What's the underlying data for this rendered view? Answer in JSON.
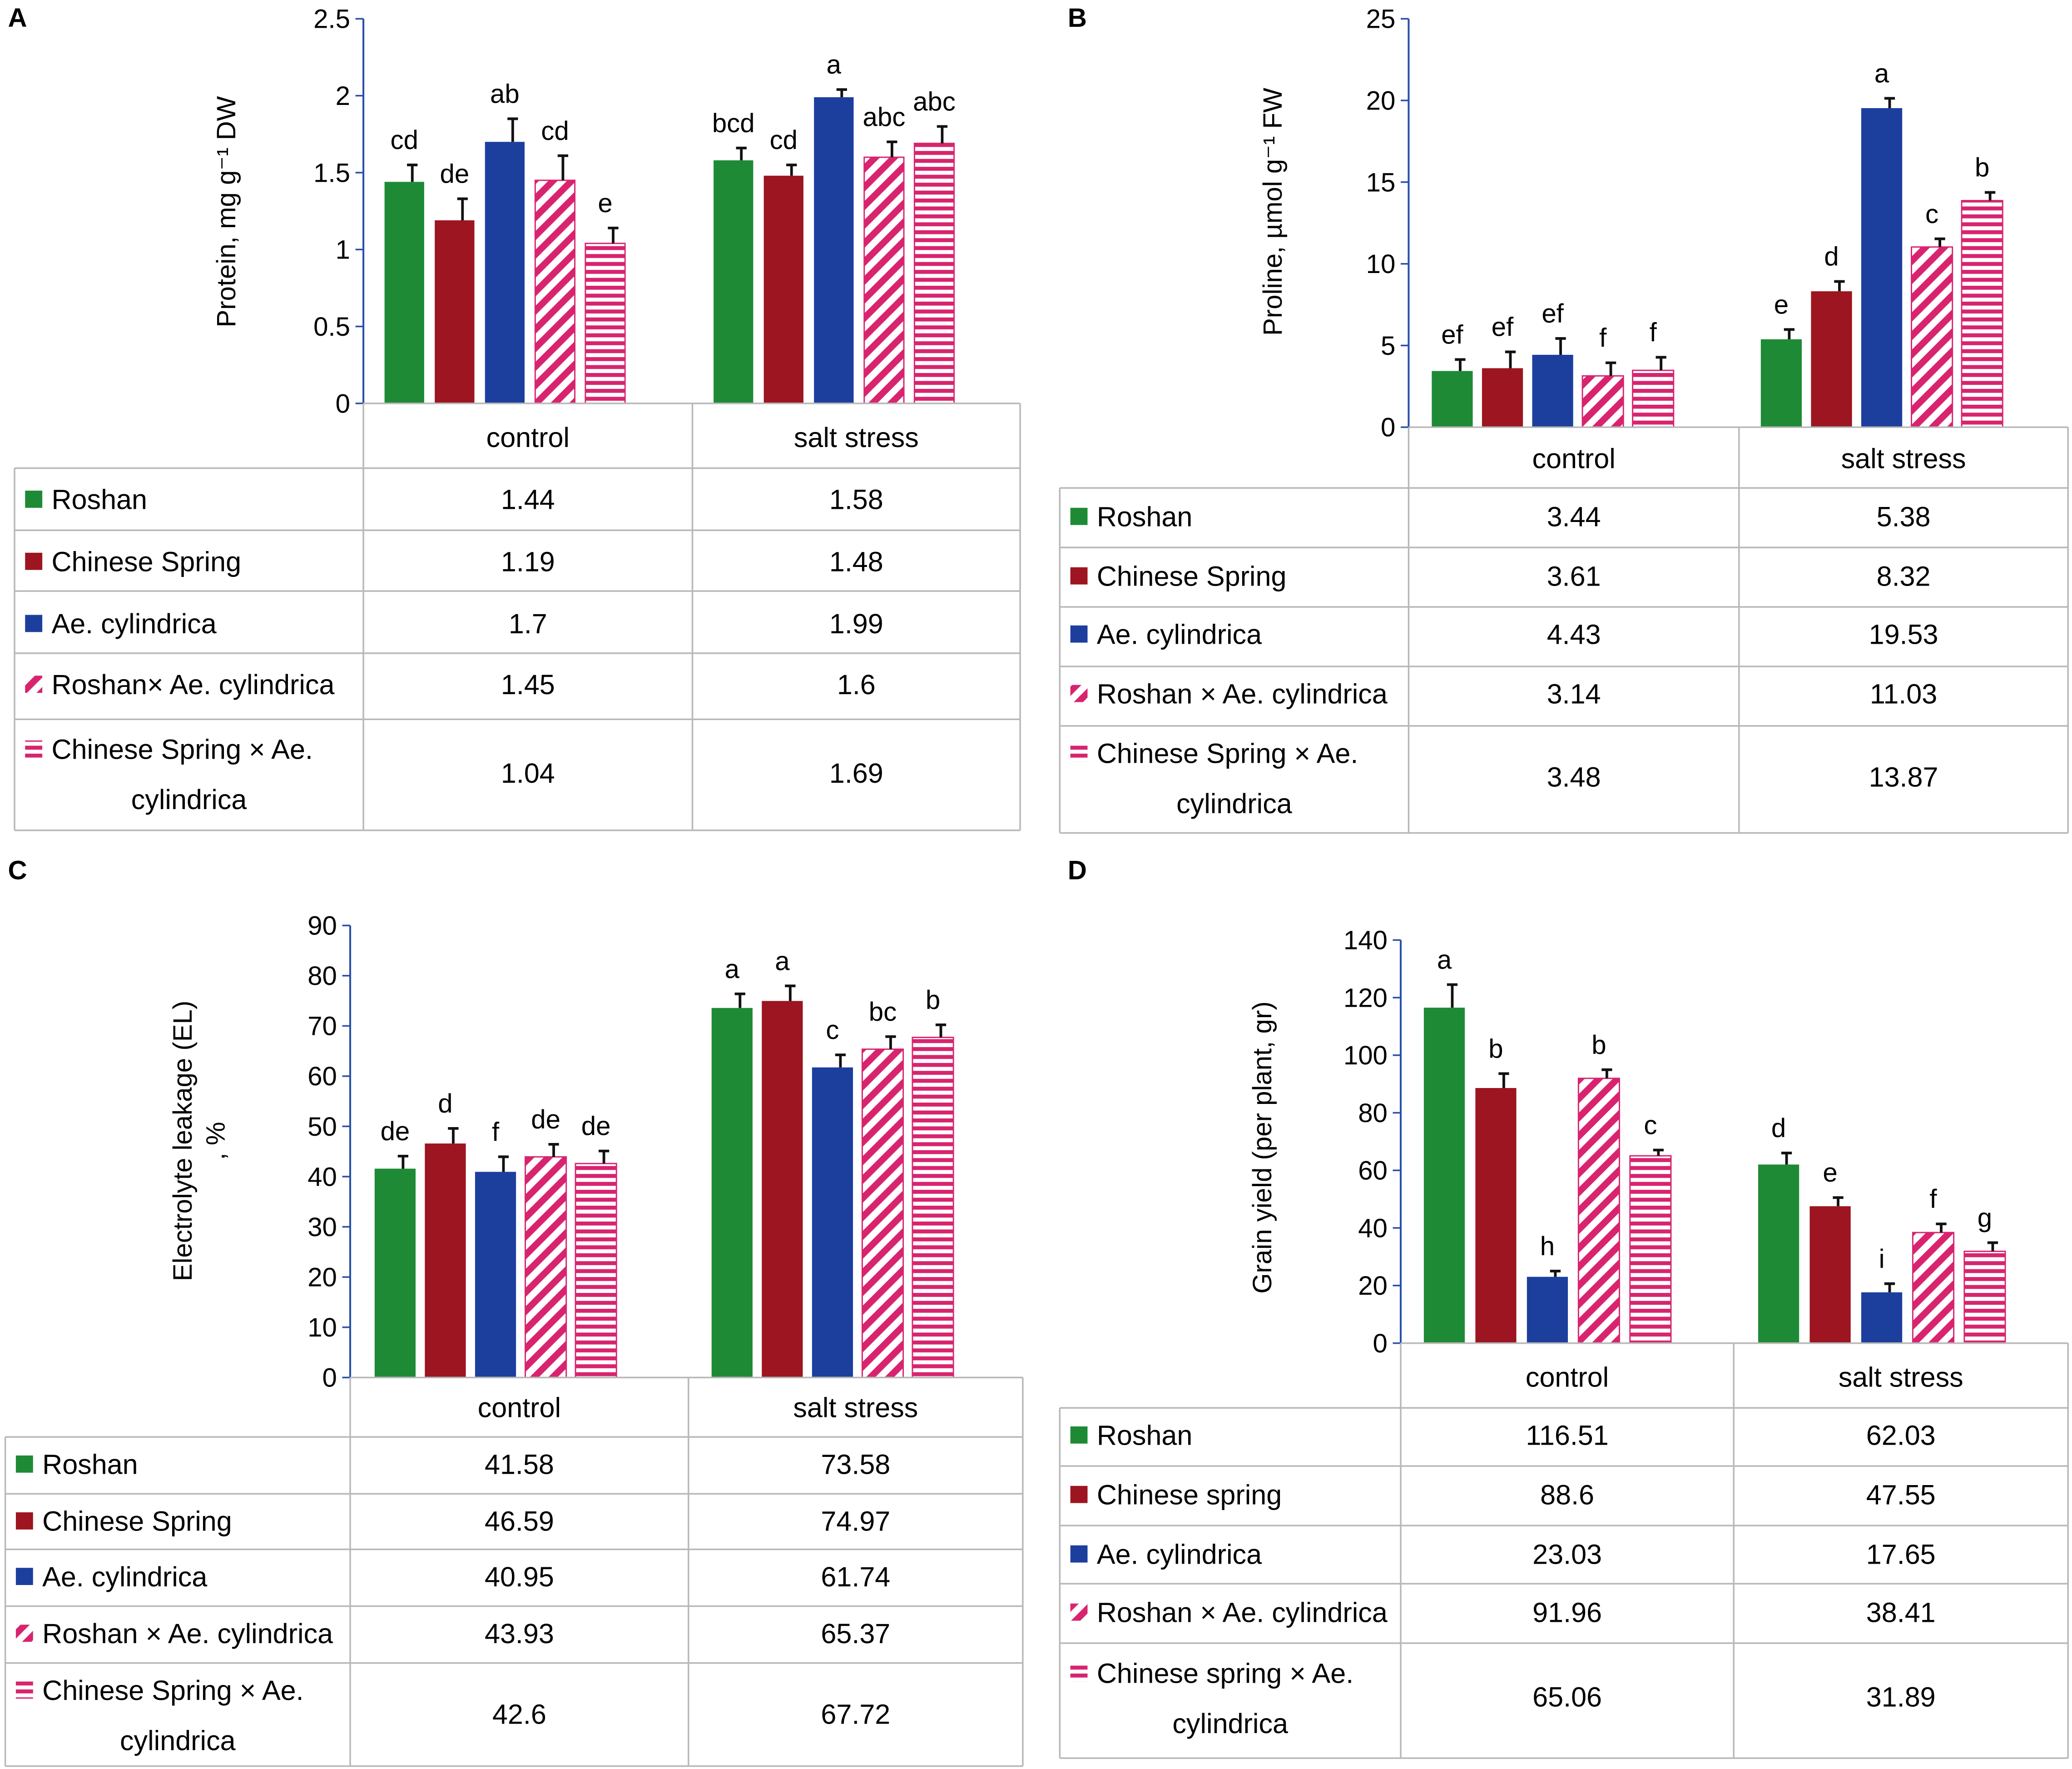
{
  "colors": {
    "roshan": "#1e8a36",
    "chinese_spring": "#9c1520",
    "ae_cylindrica": "#1c3f9e",
    "hybrid": "#d8246f",
    "axis": "#000000",
    "table_line": "#b8b8b8"
  },
  "icons": [
    "diagonal-hatch-icon",
    "horizontal-hatch-icon"
  ],
  "chart_data": [
    {
      "panel": "A",
      "type": "bar",
      "ylabel": "Protein, mg g⁻¹ DW",
      "ylim": [
        0,
        2.5
      ],
      "yticks": [
        "0",
        "0.5",
        "1",
        "1.5",
        "2",
        "2.5"
      ],
      "categories": [
        "control",
        "salt stress"
      ],
      "series": [
        {
          "name": "Roshan",
          "values": [
            1.44,
            1.58
          ],
          "errors": [
            0.11,
            0.08
          ],
          "letters": [
            "cd",
            "bcd"
          ],
          "table": [
            "1.44",
            "1.58"
          ]
        },
        {
          "name": "Chinese Spring",
          "values": [
            1.19,
            1.48
          ],
          "errors": [
            0.14,
            0.07
          ],
          "letters": [
            "de",
            "cd"
          ],
          "table": [
            "1.19",
            "1.48"
          ]
        },
        {
          "name": "Ae. cylindrica",
          "values": [
            1.7,
            1.99
          ],
          "errors": [
            0.15,
            0.05
          ],
          "letters": [
            "ab",
            "a"
          ],
          "table": [
            "1.7",
            "1.99"
          ]
        },
        {
          "name": "Roshan× Ae. cylindrica",
          "values": [
            1.45,
            1.6
          ],
          "errors": [
            0.16,
            0.1
          ],
          "letters": [
            "cd",
            "abc"
          ],
          "table": [
            "1.45",
            "1.6"
          ]
        },
        {
          "name": "Chinese Spring × Ae. cylindrica",
          "name_lines": [
            "Chinese Spring × Ae.",
            "cylindrica"
          ],
          "values": [
            1.04,
            1.69
          ],
          "errors": [
            0.1,
            0.11
          ],
          "letters": [
            "e",
            "abc"
          ],
          "table": [
            "1.04",
            "1.69"
          ]
        }
      ]
    },
    {
      "panel": "B",
      "type": "bar",
      "ylabel": "Proline, µmol g⁻¹ FW",
      "ylim": [
        0,
        25
      ],
      "yticks": [
        "0",
        "5",
        "10",
        "15",
        "20",
        "25"
      ],
      "categories": [
        "control",
        "salt stress"
      ],
      "series": [
        {
          "name": "Roshan",
          "values": [
            3.44,
            5.38
          ],
          "errors": [
            0.7,
            0.6
          ],
          "letters": [
            "ef",
            "e"
          ],
          "table": [
            "3.44",
            "5.38"
          ]
        },
        {
          "name": "Chinese Spring",
          "values": [
            3.61,
            8.32
          ],
          "errors": [
            1.0,
            0.6
          ],
          "letters": [
            "ef",
            "d"
          ],
          "table": [
            "3.61",
            "8.32"
          ]
        },
        {
          "name": "Ae. cylindrica",
          "values": [
            4.43,
            19.53
          ],
          "errors": [
            1.0,
            0.6
          ],
          "letters": [
            "ef",
            "a"
          ],
          "table": [
            "4.43",
            "19.53"
          ]
        },
        {
          "name": "Roshan × Ae. cylindrica",
          "values": [
            3.14,
            11.03
          ],
          "errors": [
            0.8,
            0.5
          ],
          "letters": [
            "f",
            "c"
          ],
          "table": [
            "3.14",
            "11.03"
          ]
        },
        {
          "name": "Chinese Spring × Ae. cylindrica",
          "name_lines": [
            "Chinese Spring × Ae.",
            "cylindrica"
          ],
          "values": [
            3.48,
            13.87
          ],
          "errors": [
            0.8,
            0.5
          ],
          "letters": [
            "f",
            "b"
          ],
          "table": [
            "3.48",
            "13.87"
          ]
        }
      ]
    },
    {
      "panel": "C",
      "type": "bar",
      "ylabel": "Electrolyte leakage (EL)",
      "ylabel2": ", %",
      "ylim": [
        0,
        90
      ],
      "yticks": [
        "0",
        "10",
        "20",
        "30",
        "40",
        "50",
        "60",
        "70",
        "80",
        "90"
      ],
      "categories": [
        "control",
        "salt stress"
      ],
      "series": [
        {
          "name": "Roshan",
          "values": [
            41.58,
            73.58
          ],
          "errors": [
            2.5,
            2.8
          ],
          "letters": [
            "de",
            "a"
          ],
          "table": [
            "41.58",
            "73.58"
          ]
        },
        {
          "name": "Chinese Spring",
          "values": [
            46.59,
            74.97
          ],
          "errors": [
            3.0,
            3.0
          ],
          "letters": [
            "d",
            "a"
          ],
          "table": [
            "46.59",
            "74.97"
          ]
        },
        {
          "name": "Ae. cylindrica",
          "values": [
            40.95,
            61.74
          ],
          "errors": [
            3.0,
            2.5
          ],
          "letters": [
            "f",
            "c"
          ],
          "table": [
            "40.95",
            "61.74"
          ]
        },
        {
          "name": "Roshan × Ae. cylindrica",
          "values": [
            43.93,
            65.37
          ],
          "errors": [
            2.5,
            2.5
          ],
          "letters": [
            "de",
            "bc"
          ],
          "table": [
            "43.93",
            "65.37"
          ]
        },
        {
          "name": "Chinese Spring × Ae. cylindrica",
          "name_lines": [
            "Chinese Spring × Ae.",
            "cylindrica"
          ],
          "values": [
            42.6,
            67.72
          ],
          "errors": [
            2.5,
            2.5
          ],
          "letters": [
            "de",
            "b"
          ],
          "table": [
            "42.6",
            "67.72"
          ]
        }
      ]
    },
    {
      "panel": "D",
      "type": "bar",
      "ylabel": "Grain yield (per plant, gr)",
      "ylim": [
        0,
        140
      ],
      "yticks": [
        "0",
        "20",
        "40",
        "60",
        "80",
        "100",
        "120",
        "140"
      ],
      "categories": [
        "control",
        "salt stress"
      ],
      "series": [
        {
          "name": "Roshan",
          "values": [
            116.51,
            62.03
          ],
          "errors": [
            8.0,
            4.0
          ],
          "letters": [
            "a",
            "d"
          ],
          "table": [
            "116.51",
            "62.03"
          ]
        },
        {
          "name": "Chinese spring",
          "values": [
            88.6,
            47.55
          ],
          "errors": [
            5.0,
            3.0
          ],
          "letters": [
            "b",
            "e"
          ],
          "table": [
            "88.6",
            "47.55"
          ]
        },
        {
          "name": "Ae. cylindrica",
          "values": [
            23.03,
            17.65
          ],
          "errors": [
            2.0,
            3.0
          ],
          "letters": [
            "h",
            "i"
          ],
          "table": [
            "23.03",
            "17.65"
          ]
        },
        {
          "name": "Roshan × Ae. cylindrica",
          "values": [
            91.96,
            38.41
          ],
          "errors": [
            3.0,
            3.0
          ],
          "letters": [
            "b",
            "f"
          ],
          "table": [
            "91.96",
            "38.41"
          ]
        },
        {
          "name": "Chinese spring × Ae. cylindrica",
          "name_lines": [
            "Chinese spring × Ae.",
            "cylindrica"
          ],
          "values": [
            65.06,
            31.89
          ],
          "errors": [
            2.0,
            3.0
          ],
          "letters": [
            "c",
            "g"
          ],
          "table": [
            "65.06",
            "31.89"
          ]
        }
      ]
    }
  ]
}
